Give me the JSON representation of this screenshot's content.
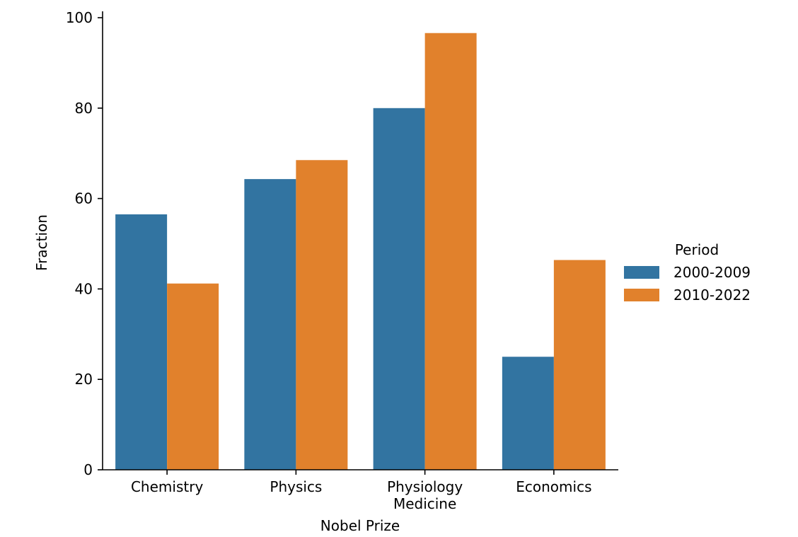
{
  "chart_data": {
    "type": "bar",
    "title": "",
    "xlabel": "Nobel Prize",
    "ylabel": "Fraction",
    "categories": [
      [
        "Chemistry"
      ],
      [
        "Physics"
      ],
      [
        "Physiology",
        "Medicine"
      ],
      [
        "Economics"
      ]
    ],
    "ylim": [
      0,
      100
    ],
    "yticks": [
      0,
      20,
      40,
      60,
      80,
      100
    ],
    "series": [
      {
        "name": "2000-2009",
        "color": "#3274a1",
        "values": [
          56.5,
          64.3,
          80.0,
          25.0
        ]
      },
      {
        "name": "2010-2022",
        "color": "#e1812c",
        "values": [
          41.2,
          68.5,
          96.6,
          46.4
        ]
      }
    ],
    "legend": {
      "title": "Period",
      "placement": "right"
    },
    "grid": false
  }
}
